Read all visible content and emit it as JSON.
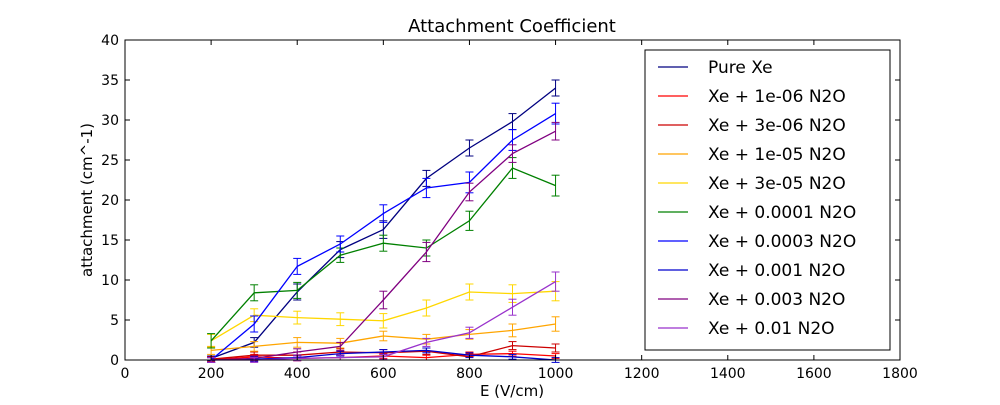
{
  "chart_data": {
    "type": "line",
    "title": "Attachment Coefficient",
    "xlabel": "E (V/cm)",
    "ylabel": "attachment (cm^-1)",
    "xlim": [
      0,
      1800
    ],
    "ylim": [
      0,
      40
    ],
    "xticks": [
      0,
      200,
      400,
      600,
      800,
      1000,
      1200,
      1400,
      1600,
      1800
    ],
    "yticks": [
      0,
      5,
      10,
      15,
      20,
      25,
      30,
      35,
      40
    ],
    "x": [
      200,
      300,
      400,
      500,
      600,
      700,
      800,
      900,
      1000
    ],
    "grid": false,
    "legend_position": "upper right",
    "series": [
      {
        "name": "Pure Xe",
        "color": "#000080",
        "values": [
          0.2,
          2.2,
          8.5,
          13.8,
          16.3,
          22.7,
          26.5,
          29.8,
          34.0
        ],
        "errors": [
          0.3,
          0.6,
          1.0,
          1.0,
          1.1,
          1.0,
          1.0,
          1.0,
          1.0
        ]
      },
      {
        "name": "Xe + 1e-06 N2O",
        "color": "#ff0000",
        "values": [
          0.0,
          0.4,
          0.2,
          0.3,
          0.5,
          0.3,
          0.7,
          0.8,
          0.5
        ],
        "errors": [
          0.3,
          0.3,
          0.3,
          0.3,
          0.3,
          0.3,
          0.3,
          0.3,
          0.3
        ]
      },
      {
        "name": "Xe + 3e-06 N2O",
        "color": "#cc0000",
        "values": [
          0.1,
          0.6,
          0.6,
          1.0,
          0.9,
          1.1,
          0.4,
          1.8,
          1.5
        ],
        "errors": [
          0.3,
          0.4,
          0.4,
          0.4,
          0.4,
          0.4,
          0.4,
          0.5,
          0.5
        ]
      },
      {
        "name": "Xe + 1e-05 N2O",
        "color": "#ffa500",
        "values": [
          1.2,
          1.7,
          2.2,
          2.1,
          3.0,
          2.6,
          3.2,
          3.7,
          4.5
        ],
        "errors": [
          0.5,
          0.6,
          0.6,
          0.6,
          0.6,
          0.6,
          0.6,
          0.8,
          0.9
        ]
      },
      {
        "name": "Xe + 3e-05 N2O",
        "color": "#ffd700",
        "values": [
          2.4,
          5.6,
          5.3,
          5.1,
          4.9,
          6.5,
          8.5,
          8.3,
          8.6
        ],
        "errors": [
          0.8,
          0.8,
          0.8,
          0.8,
          0.9,
          1.0,
          1.0,
          1.1,
          1.2
        ]
      },
      {
        "name": "Xe + 0.0001 N2O",
        "color": "#008000",
        "values": [
          2.4,
          8.4,
          8.7,
          13.1,
          14.6,
          14.0,
          17.4,
          24.0,
          21.8
        ],
        "errors": [
          0.9,
          1.0,
          1.0,
          0.9,
          1.0,
          1.0,
          1.2,
          1.3,
          1.3
        ]
      },
      {
        "name": "Xe + 0.0003 N2O",
        "color": "#0000ff",
        "values": [
          0.0,
          4.5,
          11.7,
          14.5,
          18.3,
          21.5,
          22.2,
          27.5,
          30.8
        ],
        "errors": [
          0.3,
          1.0,
          1.0,
          1.0,
          1.1,
          1.2,
          1.3,
          1.3,
          1.3
        ]
      },
      {
        "name": "Xe + 0.001 N2O",
        "color": "#0000cd",
        "values": [
          0.0,
          0.1,
          0.3,
          0.8,
          1.0,
          1.2,
          0.6,
          0.4,
          0.0
        ],
        "errors": [
          0.3,
          0.3,
          0.3,
          0.3,
          0.3,
          0.3,
          0.3,
          0.3,
          0.3
        ]
      },
      {
        "name": "Xe + 0.003 N2O",
        "color": "#800080",
        "values": [
          0.0,
          0.2,
          1.0,
          1.7,
          7.5,
          13.5,
          21.0,
          25.8,
          28.6
        ],
        "errors": [
          0.3,
          0.3,
          0.4,
          0.5,
          1.1,
          1.2,
          1.1,
          1.1,
          1.1
        ]
      },
      {
        "name": "Xe + 0.01 N2O",
        "color": "#9932cc",
        "values": [
          0.0,
          0.0,
          0.2,
          0.3,
          0.4,
          2.2,
          3.4,
          6.6,
          9.8
        ],
        "errors": [
          0.3,
          0.3,
          0.3,
          0.3,
          0.3,
          0.5,
          0.7,
          1.0,
          1.2
        ]
      }
    ]
  }
}
